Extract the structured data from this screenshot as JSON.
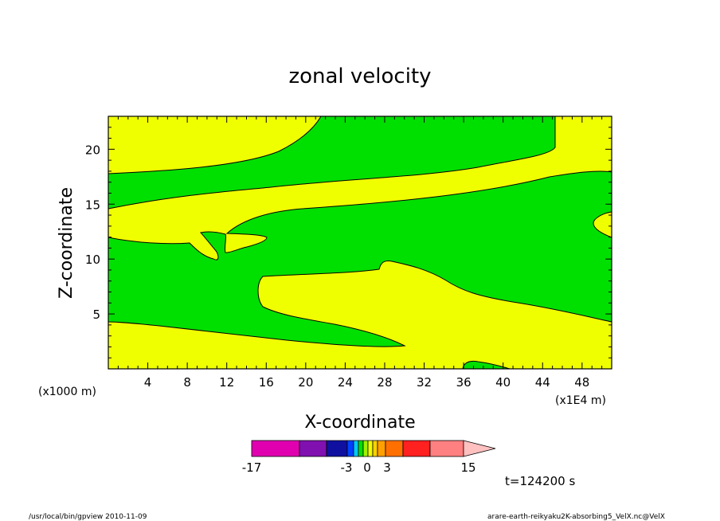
{
  "chart_data": {
    "type": "contour",
    "title": "zonal velocity",
    "xlabel": "X-coordinate",
    "ylabel": "Z-coordinate",
    "x_unit_label": "(x1E4 m)",
    "y_unit_label": "(x1000 m)",
    "xlim": [
      0,
      51
    ],
    "ylim": [
      0,
      23
    ],
    "x_ticks": [
      "4",
      "8",
      "12",
      "16",
      "20",
      "24",
      "28",
      "32",
      "36",
      "40",
      "44",
      "48"
    ],
    "x_tick_values": [
      4,
      8,
      12,
      16,
      20,
      24,
      28,
      32,
      36,
      40,
      44,
      48
    ],
    "y_ticks": [
      "5",
      "10",
      "15",
      "20"
    ],
    "y_tick_values": [
      5,
      10,
      15,
      20
    ],
    "colors": {
      "negative_small": "#00e000",
      "positive_small": "#f0ff00",
      "contour_line": "#000000"
    },
    "colorbar": {
      "tick_labels": [
        "-17",
        "-3",
        "0",
        "3",
        "15"
      ],
      "tick_values": [
        -17,
        -3,
        0,
        3,
        15
      ],
      "range": [
        -17,
        15
      ],
      "swatches": [
        "#e000b0",
        "#8010b0",
        "#1010a0",
        "#0040ff",
        "#00c8ff",
        "#00e000",
        "#a0f000",
        "#f0ff00",
        "#ffd000",
        "#ffa000",
        "#ff7000",
        "#ff2020",
        "#ff8080"
      ],
      "extend_color": "#ffc0c0"
    },
    "time_label": "t=124200 s"
  },
  "footer": {
    "left": "/usr/local/bin/gpview   2010-11-09",
    "right": "arare-earth-reikyaku2K-absorbing5_VelX.nc@VelX"
  }
}
